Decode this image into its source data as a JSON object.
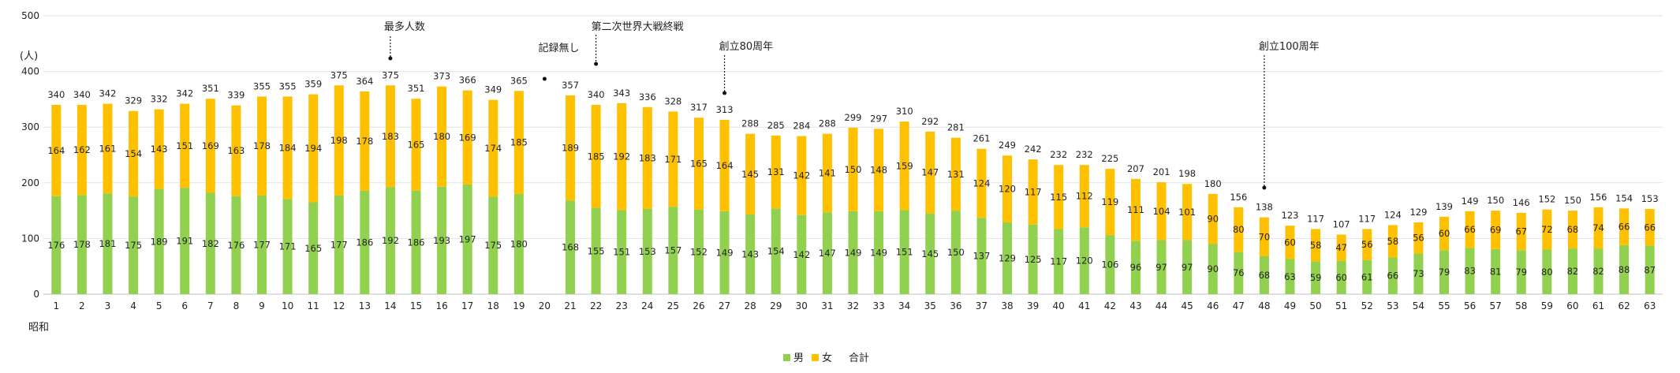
{
  "chart_data": {
    "type": "bar",
    "stacked": true,
    "ylabel": "(人)",
    "ylim": [
      0,
      500
    ],
    "yticks": [
      0,
      100,
      200,
      300,
      400,
      500
    ],
    "x_era_label": "昭和",
    "categories": [
      "1",
      "2",
      "3",
      "4",
      "5",
      "6",
      "7",
      "8",
      "9",
      "10",
      "11",
      "12",
      "13",
      "14",
      "15",
      "16",
      "17",
      "18",
      "19",
      "20",
      "21",
      "22",
      "23",
      "24",
      "25",
      "26",
      "27",
      "28",
      "29",
      "30",
      "31",
      "32",
      "33",
      "34",
      "35",
      "36",
      "37",
      "38",
      "39",
      "40",
      "41",
      "42",
      "43",
      "44",
      "45",
      "46",
      "47",
      "48",
      "49",
      "50",
      "51",
      "52",
      "53",
      "54",
      "55",
      "56",
      "57",
      "58",
      "59",
      "60",
      "61",
      "62",
      "63"
    ],
    "series": [
      {
        "name": "男",
        "color": "#92D050",
        "values": [
          176,
          178,
          181,
          175,
          189,
          191,
          182,
          176,
          177,
          171,
          165,
          177,
          186,
          192,
          186,
          193,
          197,
          175,
          180,
          null,
          168,
          155,
          151,
          153,
          157,
          152,
          149,
          143,
          154,
          142,
          147,
          149,
          149,
          151,
          145,
          150,
          137,
          129,
          125,
          117,
          120,
          106,
          96,
          97,
          97,
          90,
          76,
          68,
          63,
          59,
          60,
          61,
          66,
          73,
          79,
          83,
          81,
          79,
          80,
          82,
          82,
          88,
          87
        ]
      },
      {
        "name": "女",
        "color": "#FFC000",
        "values": [
          164,
          162,
          161,
          154,
          143,
          151,
          169,
          163,
          178,
          184,
          194,
          198,
          178,
          183,
          165,
          180,
          169,
          174,
          185,
          null,
          189,
          185,
          192,
          183,
          171,
          165,
          164,
          145,
          131,
          142,
          141,
          150,
          148,
          159,
          147,
          131,
          124,
          120,
          117,
          115,
          112,
          119,
          111,
          104,
          101,
          90,
          80,
          70,
          60,
          58,
          47,
          56,
          58,
          56,
          60,
          66,
          69,
          67,
          72,
          68,
          74,
          66,
          66
        ]
      }
    ],
    "totals_legend": "合計",
    "totals": [
      340,
      340,
      342,
      329,
      332,
      342,
      351,
      339,
      355,
      355,
      359,
      375,
      364,
      375,
      351,
      373,
      366,
      349,
      365,
      null,
      357,
      340,
      343,
      336,
      328,
      317,
      313,
      288,
      285,
      284,
      288,
      299,
      297,
      310,
      292,
      281,
      261,
      249,
      242,
      232,
      232,
      225,
      207,
      201,
      198,
      180,
      156,
      138,
      123,
      117,
      107,
      117,
      124,
      129,
      139,
      149,
      150,
      146,
      152,
      150,
      156,
      154,
      153
    ],
    "annotations": [
      {
        "category": "14",
        "text": "最多人数"
      },
      {
        "category": "20",
        "text": "記録無し"
      },
      {
        "category": "22",
        "text": "第二次世界大戦終戦"
      },
      {
        "category": "27",
        "text": "創立80周年"
      },
      {
        "category": "48",
        "text": "創立100周年"
      }
    ],
    "legend_position": "bottom",
    "grid": true
  }
}
